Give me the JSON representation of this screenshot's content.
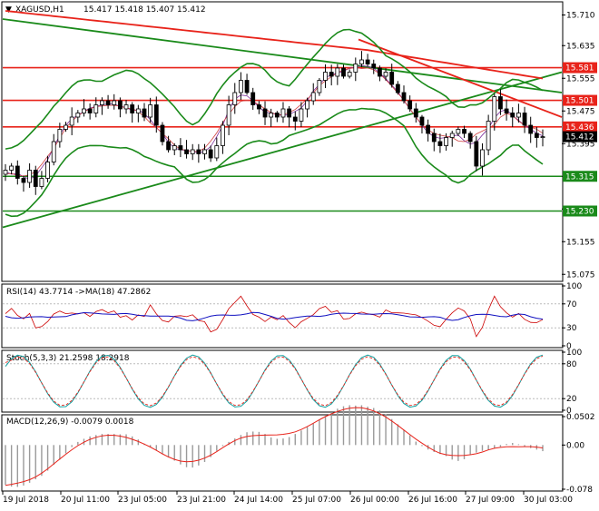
{
  "main": {
    "symbol_text": "XAGUSD,H1",
    "ohlc_text": "15.417 15.418 15.407 15.412",
    "yticks": [
      "15.710",
      "15.635",
      "15.555",
      "15.475",
      "15.395",
      "15.315",
      "15.235",
      "15.155",
      "15.075"
    ],
    "level_labels": [
      {
        "label": "15.581",
        "value": 15.581,
        "color": "#e8231a"
      },
      {
        "label": "15.501",
        "value": 15.501,
        "color": "#e8231a"
      },
      {
        "label": "15.436",
        "value": 15.436,
        "color": "#e8231a"
      },
      {
        "label": "15.315",
        "value": 15.315,
        "color": "#1a8a1a"
      },
      {
        "label": "15.230",
        "value": 15.23,
        "color": "#1a8a1a"
      }
    ],
    "price_label": "15.412"
  },
  "rsi": {
    "title_text": "RSI(14) 43.7714  ->MA(18) 47.2862",
    "yticks": [
      "100",
      "70",
      "30",
      "0"
    ]
  },
  "stoch": {
    "title_text": "Stoch(5,3,3) 21.2598 18.2918",
    "yticks": [
      "100",
      "80",
      "20",
      "0"
    ]
  },
  "macd": {
    "title_text": "MACD(12,26,9) -0.0079 0.0018",
    "yticks": [
      "0.0502",
      "0.00",
      "-0.078"
    ]
  },
  "xticks": [
    "19 Jul 2018",
    "20 Jul 11:00",
    "23 Jul 05:00",
    "23 Jul 21:00",
    "24 Jul 14:00",
    "25 Jul 07:00",
    "26 Jul 00:00",
    "26 Jul 16:00",
    "27 Jul 09:00",
    "30 Jul 03:00"
  ],
  "colors": {
    "support_level": "#1a8a1a",
    "resistance_level": "#e8231a",
    "bollinger": "#1a8a1a",
    "slow_ma": "#e8231a",
    "rsi_line": "#cc0000",
    "rsi_ma": "#1010c0",
    "stoch_main": "#10a0a0",
    "stoch_signal": "#e8231a",
    "macd_signal": "#e8231a",
    "macd_hist": "#9a9a9a"
  },
  "chart_data": [
    {
      "type": "candlestick",
      "title": "XAGUSD,H1",
      "ylim": [
        15.06,
        15.74
      ],
      "last_close": 15.412,
      "horizontal_levels": [
        15.581,
        15.501,
        15.436,
        15.315,
        15.23
      ],
      "candles_close": [
        15.33,
        15.34,
        15.31,
        15.3,
        15.33,
        15.29,
        15.31,
        15.35,
        15.4,
        15.43,
        15.44,
        15.46,
        15.47,
        15.48,
        15.47,
        15.49,
        15.5,
        15.49,
        15.5,
        15.48,
        15.49,
        15.47,
        15.48,
        15.46,
        15.49,
        15.44,
        15.4,
        15.38,
        15.39,
        15.38,
        15.37,
        15.38,
        15.37,
        15.38,
        15.36,
        15.39,
        15.44,
        15.49,
        15.52,
        15.55,
        15.52,
        15.49,
        15.48,
        15.46,
        15.47,
        15.46,
        15.48,
        15.46,
        15.45,
        15.48,
        15.5,
        15.52,
        15.55,
        15.57,
        15.56,
        15.58,
        15.56,
        15.57,
        15.59,
        15.6,
        15.59,
        15.58,
        15.56,
        15.57,
        15.54,
        15.52,
        15.5,
        15.48,
        15.46,
        15.44,
        15.42,
        15.4,
        15.39,
        15.41,
        15.42,
        15.43,
        15.42,
        15.4,
        15.34,
        15.38,
        15.45,
        15.51,
        15.48,
        15.47,
        15.46,
        15.47,
        15.44,
        15.42,
        15.41,
        15.412
      ]
    },
    {
      "type": "line",
      "title": "RSI(14)",
      "values_text": {
        "rsi": 43.7714,
        "ma18": 47.2862
      },
      "ylim": [
        0,
        100
      ],
      "levels": [
        70,
        30
      ]
    },
    {
      "type": "line",
      "title": "Stoch(5,3,3)",
      "values_text": {
        "main": 21.2598,
        "signal": 18.2918
      },
      "ylim": [
        0,
        100
      ],
      "levels": [
        80,
        20
      ]
    },
    {
      "type": "bar",
      "title": "MACD(12,26,9)",
      "values_text": {
        "macd": -0.0079,
        "signal": 0.0018
      },
      "ylim": [
        -0.078,
        0.0502
      ]
    }
  ]
}
